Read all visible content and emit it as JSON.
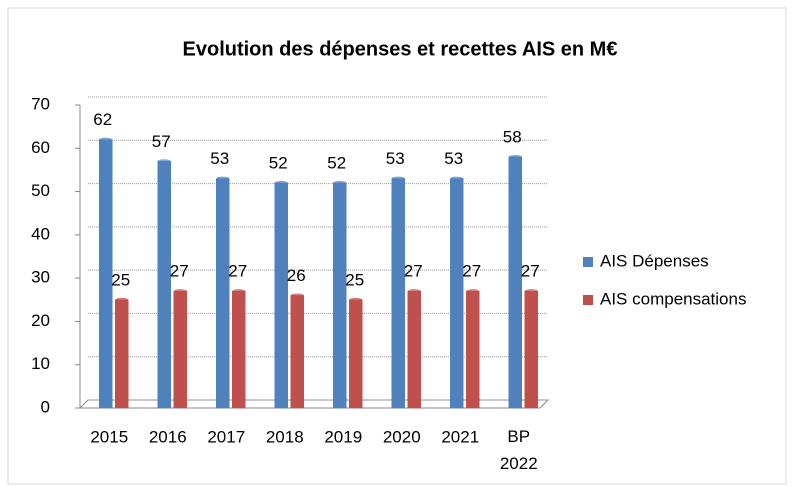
{
  "chart_data": {
    "type": "bar",
    "title": "Evolution des dépenses et recettes AIS en M€",
    "categories": [
      "2015",
      "2016",
      "2017",
      "2018",
      "2019",
      "2020",
      "2021",
      "BP 2022"
    ],
    "series": [
      {
        "name": "AIS Dépenses",
        "color": "#4f81bd",
        "values": [
          62,
          57,
          53,
          52,
          52,
          53,
          53,
          58
        ]
      },
      {
        "name": "AIS compensations",
        "color": "#c0504d",
        "values": [
          25,
          27,
          27,
          26,
          25,
          27,
          27,
          27
        ]
      }
    ],
    "ylim": [
      0,
      70
    ],
    "yticks": [
      0,
      10,
      20,
      30,
      40,
      50,
      60,
      70
    ],
    "grid": true,
    "legend": "right"
  }
}
